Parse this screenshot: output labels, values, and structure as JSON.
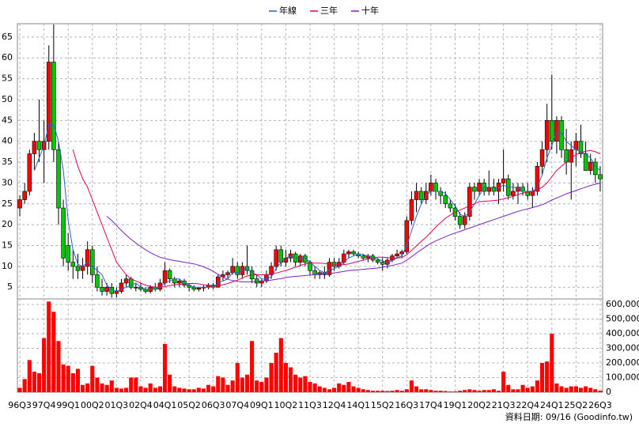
{
  "chart_data": {
    "type": "candlestick",
    "legend": "top",
    "grid": true,
    "up_color": "#ff0000",
    "down_color": "#00c800",
    "volume_color": "#ff0000",
    "note": "資料日期: 09/16  (Goodinfo.tw)",
    "categories": [
      "96Q3",
      null,
      null,
      null,
      null,
      "97Q4",
      null,
      null,
      null,
      null,
      "99Q1",
      null,
      null,
      null,
      null,
      "00Q2",
      null,
      null,
      null,
      null,
      "01Q3",
      null,
      null,
      null,
      null,
      "02Q4",
      null,
      null,
      null,
      null,
      "04Q1",
      null,
      null,
      null,
      null,
      "05Q2",
      null,
      null,
      null,
      null,
      "06Q3",
      null,
      null,
      null,
      null,
      "07Q4",
      null,
      null,
      null,
      null,
      "09Q1",
      null,
      null,
      null,
      null,
      "10Q2",
      null,
      null,
      null,
      null,
      "11Q3",
      null,
      null,
      null,
      null,
      "12Q4",
      null,
      null,
      null,
      null,
      "14Q1",
      null,
      null,
      null,
      null,
      "15Q2",
      null,
      null,
      null,
      null,
      "16Q3",
      null,
      null,
      null,
      null,
      "17Q4",
      null,
      null,
      null,
      null,
      "19Q1",
      null,
      null,
      null,
      null,
      "20Q2",
      null,
      null,
      null,
      null,
      "21Q3",
      null,
      null,
      null,
      null,
      "22Q4",
      null,
      null,
      null,
      null,
      "24Q1",
      null,
      null,
      null,
      null,
      "25Q2",
      null,
      null,
      null,
      null,
      "26Q3"
    ],
    "open": [
      24,
      26,
      28,
      37,
      40,
      38,
      40,
      59,
      38,
      24,
      15,
      11,
      10,
      9,
      10,
      14,
      8,
      5,
      4,
      5,
      3.5,
      4,
      6,
      7,
      5,
      5,
      4.5,
      4,
      5,
      4.5,
      6,
      9,
      7,
      6,
      6.5,
      5.5,
      5,
      4.5,
      4.8,
      5,
      5.5,
      5,
      7.5,
      8,
      8.5,
      10,
      8,
      10,
      9,
      7,
      6,
      6.5,
      8,
      10,
      14,
      11,
      12,
      13,
      11,
      12.5,
      11,
      9,
      8,
      8.5,
      8,
      11,
      10,
      11,
      13,
      13.5,
      13,
      12.5,
      12,
      12.5,
      11.5,
      11,
      10.5,
      11.5,
      12.5,
      13,
      13.5,
      21,
      26,
      28,
      26,
      28,
      30,
      28,
      27,
      25,
      24,
      22,
      20,
      22,
      29,
      28,
      30,
      28,
      29,
      28,
      30,
      31,
      27,
      28,
      29,
      28,
      27,
      28,
      34,
      38,
      45,
      40,
      45,
      38,
      35,
      38,
      40,
      37,
      33,
      35,
      32
    ],
    "high": [
      27,
      30,
      38,
      42,
      50,
      45,
      63,
      68,
      40,
      26,
      18,
      14,
      13,
      12,
      16,
      15,
      10,
      7,
      6,
      6,
      5,
      7,
      8,
      7.5,
      6,
      6,
      5,
      5.5,
      6,
      7,
      11,
      9.5,
      7.5,
      7,
      7,
      6,
      5.5,
      5,
      5.5,
      6,
      6,
      8,
      9,
      9,
      12,
      11,
      11,
      15,
      10,
      8,
      7,
      9,
      11,
      15,
      15,
      14,
      14,
      13.5,
      13,
      13,
      11.5,
      10,
      9,
      10,
      12,
      12,
      12,
      14,
      14,
      14,
      13.5,
      13,
      13,
      13,
      12,
      12,
      12,
      13,
      14,
      14,
      22,
      28,
      30,
      29,
      30,
      32,
      31,
      29,
      28,
      26,
      25,
      23,
      23,
      30,
      30,
      31,
      31,
      33,
      31,
      31,
      38,
      32,
      30,
      30,
      30,
      30,
      29,
      35,
      40,
      49,
      56,
      46,
      46,
      43,
      40,
      42,
      44,
      40,
      37,
      36,
      34
    ],
    "low": [
      22,
      25,
      27,
      33,
      35,
      30,
      38,
      35,
      20,
      10,
      9,
      7,
      7,
      7,
      8,
      6,
      4,
      3,
      3,
      2.5,
      2.5,
      3.5,
      5,
      4.5,
      4,
      4,
      3.5,
      3.5,
      4,
      4,
      5.5,
      6,
      5,
      5,
      5,
      4,
      4,
      4,
      4,
      4.5,
      4.5,
      5,
      6.5,
      7,
      8,
      7,
      7,
      8,
      6,
      5,
      5,
      6,
      7,
      9,
      10,
      10,
      11,
      10,
      10,
      10,
      8,
      7,
      7,
      7,
      7.5,
      9,
      9.5,
      10.5,
      12,
      12.5,
      12,
      11.5,
      11,
      11,
      10.5,
      9,
      9.5,
      11,
      12,
      12,
      13,
      20,
      23,
      25,
      25,
      27,
      26,
      25,
      24,
      23,
      21,
      19,
      19,
      21,
      26,
      27,
      27,
      27,
      27,
      25,
      28,
      26,
      26,
      25,
      27,
      26,
      24,
      27,
      32,
      35,
      38,
      37,
      36,
      32,
      26,
      34,
      36,
      33,
      32,
      30,
      28
    ],
    "close": [
      26,
      28,
      37,
      40,
      38,
      40,
      59,
      38,
      24,
      12,
      11,
      10,
      9,
      10,
      14,
      8,
      5,
      4,
      5,
      3.5,
      4,
      6,
      7,
      5,
      5,
      4.5,
      4,
      5,
      4.5,
      6,
      9,
      7,
      6,
      6.5,
      5.5,
      5,
      4.5,
      4.8,
      5,
      5.5,
      5,
      7.5,
      8,
      8.5,
      10,
      8,
      10,
      9,
      7,
      6,
      6.5,
      8,
      10,
      14,
      11,
      12,
      13,
      11,
      12.5,
      11,
      9,
      8,
      8.5,
      8,
      11,
      10,
      11,
      13,
      13.5,
      13,
      12.5,
      12,
      12.5,
      11.5,
      11,
      10.5,
      11.5,
      12.5,
      13,
      13.5,
      21,
      26,
      28,
      26,
      28,
      30,
      28,
      27,
      25,
      24,
      22,
      20,
      22,
      29,
      28,
      30,
      28,
      29,
      28,
      30,
      31,
      27,
      28,
      29,
      28,
      27,
      28,
      34,
      38,
      45,
      40,
      45,
      38,
      35,
      38,
      40,
      37,
      33,
      35,
      32,
      31
    ],
    "volume": [
      30000,
      90000,
      220000,
      140000,
      130000,
      370000,
      620000,
      550000,
      350000,
      190000,
      180000,
      130000,
      160000,
      50000,
      60000,
      180000,
      100000,
      60000,
      50000,
      80000,
      30000,
      25000,
      30000,
      100000,
      100000,
      40000,
      30000,
      60000,
      30000,
      40000,
      330000,
      120000,
      40000,
      30000,
      25000,
      20000,
      20000,
      30000,
      25000,
      50000,
      40000,
      110000,
      100000,
      50000,
      80000,
      200000,
      100000,
      120000,
      350000,
      80000,
      70000,
      100000,
      200000,
      270000,
      370000,
      200000,
      170000,
      120000,
      100000,
      110000,
      70000,
      60000,
      40000,
      30000,
      20000,
      30000,
      60000,
      50000,
      70000,
      40000,
      30000,
      20000,
      15000,
      10000,
      10000,
      10000,
      8000,
      10000,
      15000,
      10000,
      20000,
      80000,
      40000,
      20000,
      20000,
      15000,
      10000,
      10000,
      8000,
      5000,
      5000,
      10000,
      15000,
      20000,
      15000,
      10000,
      15000,
      15000,
      20000,
      10000,
      140000,
      50000,
      20000,
      20000,
      50000,
      30000,
      40000,
      80000,
      200000,
      210000,
      400000,
      60000,
      40000,
      30000,
      40000,
      40000,
      30000,
      40000,
      30000,
      20000,
      10000
    ],
    "series": [
      {
        "name": "年線",
        "color": "#2a62c8",
        "values": [
          null,
          null,
          null,
          33,
          36,
          39,
          44,
          44,
          40,
          33,
          21,
          14,
          10.5,
          10,
          11,
          10,
          9,
          8,
          5.5,
          4.5,
          4,
          4.5,
          5,
          5.5,
          6,
          5,
          4.5,
          4.5,
          4.5,
          5,
          6,
          6.5,
          7,
          7,
          6,
          5.5,
          5,
          5,
          5,
          5,
          5,
          6,
          6.5,
          7,
          8.5,
          8.5,
          9,
          9.5,
          8.5,
          8,
          7,
          7,
          7.5,
          9.5,
          11,
          12,
          12.5,
          12,
          12,
          12,
          11,
          10,
          9,
          8.5,
          9,
          9.5,
          10,
          11,
          12,
          12.5,
          13,
          12.8,
          12.5,
          12,
          11.8,
          11.3,
          11,
          11.4,
          12,
          12.6,
          15,
          18.5,
          22,
          25,
          27,
          28,
          28,
          28,
          27.5,
          26,
          24.5,
          22.5,
          22,
          23,
          25,
          27,
          29,
          29,
          28.8,
          28.8,
          29.5,
          29,
          29,
          28.8,
          28,
          28,
          28,
          29,
          32,
          36,
          39,
          42,
          42,
          40,
          39,
          38,
          37.5,
          37,
          36,
          34,
          33
        ]
      },
      {
        "name": "三年",
        "color": "#e0005a",
        "values": [
          null,
          null,
          null,
          null,
          null,
          null,
          null,
          null,
          null,
          null,
          null,
          38,
          34,
          31,
          29,
          26,
          23,
          20,
          17,
          14,
          11,
          9.5,
          8,
          7,
          6.5,
          6,
          5.5,
          5.2,
          5,
          5,
          5.2,
          5.4,
          5.6,
          5.7,
          5.8,
          5.9,
          5.9,
          5.8,
          5.6,
          5.5,
          5.3,
          5.4,
          5.6,
          5.9,
          6.3,
          6.7,
          7.2,
          7.7,
          7.9,
          8,
          8,
          8,
          8.1,
          8.4,
          8.7,
          9,
          9.4,
          9.8,
          10.2,
          10.6,
          10.8,
          10.8,
          10.8,
          10.7,
          10.6,
          10.5,
          10.4,
          10.4,
          10.6,
          10.9,
          11.2,
          11.5,
          11.8,
          12,
          12.2,
          12.2,
          12.1,
          12,
          12,
          12.1,
          12.8,
          13.8,
          14.9,
          16,
          17,
          18.2,
          19.4,
          20.5,
          21.5,
          22.3,
          23,
          23.5,
          24,
          24.6,
          25,
          25.5,
          25.6,
          25.7,
          25.8,
          25.9,
          26.2,
          26.5,
          26.8,
          27.2,
          27.6,
          27.8,
          28,
          28.3,
          29,
          30,
          31.5,
          33,
          34,
          35,
          36,
          36.8,
          37.3,
          37.6,
          37.8,
          37.5,
          37
        ]
      },
      {
        "name": "十年",
        "color": "#7a1fd0",
        "values": [
          null,
          null,
          null,
          null,
          null,
          null,
          null,
          null,
          null,
          null,
          null,
          null,
          null,
          null,
          null,
          null,
          null,
          null,
          22,
          21,
          19.8,
          18.6,
          17.5,
          16.5,
          15.6,
          14.8,
          14,
          13.3,
          12.7,
          12.2,
          11.9,
          11.6,
          11.4,
          11.2,
          11,
          10.8,
          10.6,
          10.3,
          9.9,
          9.4,
          8.8,
          8.1,
          7.4,
          6.9,
          6.6,
          6.4,
          6.3,
          6.3,
          6.3,
          6.4,
          6.5,
          6.6,
          6.7,
          6.9,
          7.1,
          7.3,
          7.5,
          7.6,
          7.7,
          7.8,
          7.9,
          8,
          8.1,
          8.2,
          8.3,
          8.4,
          8.6,
          8.8,
          9,
          9.1,
          9.2,
          9.3,
          9.4,
          9.5,
          9.6,
          9.8,
          10,
          10.2,
          10.5,
          10.8,
          11.5,
          12.3,
          13.2,
          14,
          14.8,
          15.5,
          16.1,
          16.6,
          17.1,
          17.6,
          18,
          18.4,
          18.8,
          19.2,
          19.6,
          20,
          20.4,
          20.8,
          21.2,
          21.6,
          22,
          22.4,
          22.8,
          23.2,
          23.5,
          23.8,
          24.1,
          24.4,
          24.8,
          25.3,
          25.9,
          26.4,
          26.9,
          27.4,
          27.8,
          28.2,
          28.6,
          29,
          29.4,
          29.7,
          30
        ]
      }
    ],
    "ylim": [
      2.2,
      68.2
    ],
    "yticks": [
      5,
      10,
      15,
      20,
      25,
      30,
      35,
      40,
      45,
      50,
      55,
      60,
      65
    ],
    "y2lim": [
      0,
      638000
    ],
    "y2ticks": [
      {
        "value": 0,
        "label": "0"
      },
      {
        "value": 100000,
        "label": "100,000"
      },
      {
        "value": 200000,
        "label": "200,000"
      },
      {
        "value": 300000,
        "label": "300,000"
      },
      {
        "value": 400000,
        "label": "400,000"
      },
      {
        "value": 500000,
        "label": "500,000"
      },
      {
        "value": 600000,
        "label": "600,000"
      }
    ]
  }
}
